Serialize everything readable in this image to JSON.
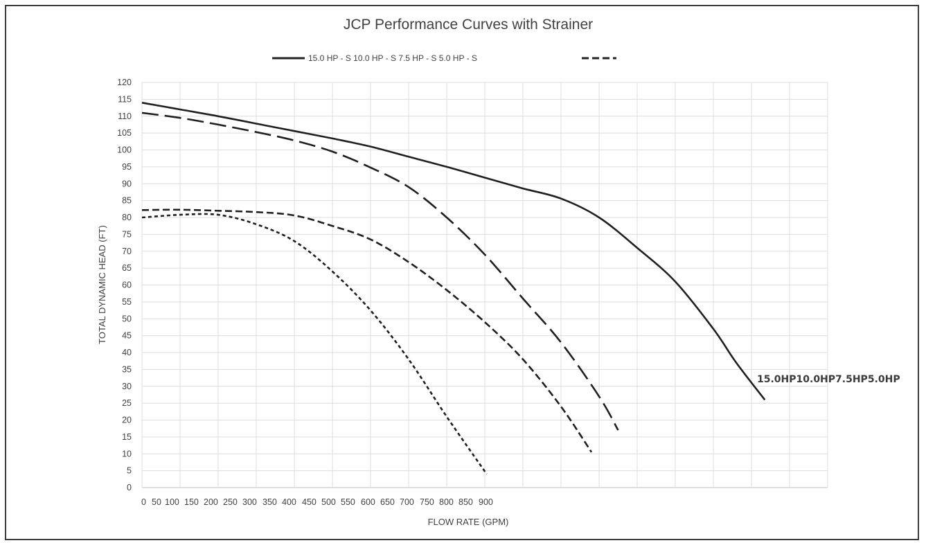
{
  "chart_data": {
    "type": "line",
    "title": "JCP Performance Curves with Strainer",
    "xlabel": "FLOW RATE  (GPM)",
    "ylabel": "TOTAL DYNAMIC HEAD (FT)",
    "ylim": [
      0,
      120
    ],
    "yticks": [
      "0",
      "5",
      "10",
      "15",
      "20",
      "25",
      "30",
      "35",
      "40",
      "45",
      "50",
      "55",
      "60",
      "65",
      "70",
      "75",
      "80",
      "85",
      "90",
      "95",
      "100",
      "105",
      "110",
      "115",
      "120"
    ],
    "xticks": [
      "0",
      "50",
      "100",
      "150",
      "200",
      "250",
      "300",
      "350",
      "400",
      "450",
      "500",
      "550",
      "600",
      "650",
      "700",
      "750",
      "800",
      "850",
      "900"
    ],
    "grid": true,
    "legend_position": "top",
    "legend_text": "15.0 HP - S 10.0 HP - S 7.5 HP - S 5.0 HP - S",
    "curve_label_text": "15.0HP10.0HP7.5HP5.0HP",
    "series": [
      {
        "name": "15.0 HP - S",
        "dash": "solid",
        "points": [
          [
            0,
            114
          ],
          [
            100,
            112
          ],
          [
            200,
            110
          ],
          [
            300,
            107.8
          ],
          [
            400,
            105.6
          ],
          [
            500,
            103.4
          ],
          [
            600,
            101
          ],
          [
            700,
            98
          ],
          [
            800,
            95
          ],
          [
            900,
            91.8
          ],
          [
            1000,
            88.6
          ],
          [
            1100,
            85.6
          ],
          [
            1200,
            80
          ],
          [
            1300,
            71
          ],
          [
            1400,
            61
          ],
          [
            1500,
            47
          ],
          [
            1560,
            37
          ],
          [
            1635,
            26
          ]
        ]
      },
      {
        "name": "10.0 HP - S",
        "dash": "long",
        "points": [
          [
            0,
            111
          ],
          [
            100,
            109.5
          ],
          [
            200,
            107.5
          ],
          [
            300,
            105.3
          ],
          [
            400,
            102.8
          ],
          [
            500,
            99.5
          ],
          [
            600,
            94.8
          ],
          [
            700,
            89
          ],
          [
            800,
            80
          ],
          [
            900,
            69
          ],
          [
            1000,
            56
          ],
          [
            1100,
            43
          ],
          [
            1200,
            27
          ],
          [
            1250,
            17
          ]
        ]
      },
      {
        "name": "7.5 HP - S",
        "dash": "medium",
        "points": [
          [
            0,
            82.2
          ],
          [
            100,
            82.3
          ],
          [
            200,
            82
          ],
          [
            300,
            81.6
          ],
          [
            400,
            80.6
          ],
          [
            500,
            77.5
          ],
          [
            600,
            73.5
          ],
          [
            700,
            66.8
          ],
          [
            800,
            58.5
          ],
          [
            900,
            49
          ],
          [
            1000,
            38
          ],
          [
            1100,
            24
          ],
          [
            1180,
            10.5
          ]
        ]
      },
      {
        "name": "5.0 HP - S",
        "dash": "short",
        "points": [
          [
            0,
            80
          ],
          [
            100,
            80.8
          ],
          [
            200,
            80.8
          ],
          [
            300,
            78
          ],
          [
            400,
            73
          ],
          [
            500,
            64
          ],
          [
            600,
            52.5
          ],
          [
            700,
            38
          ],
          [
            800,
            21
          ],
          [
            905,
            4
          ]
        ]
      }
    ]
  }
}
